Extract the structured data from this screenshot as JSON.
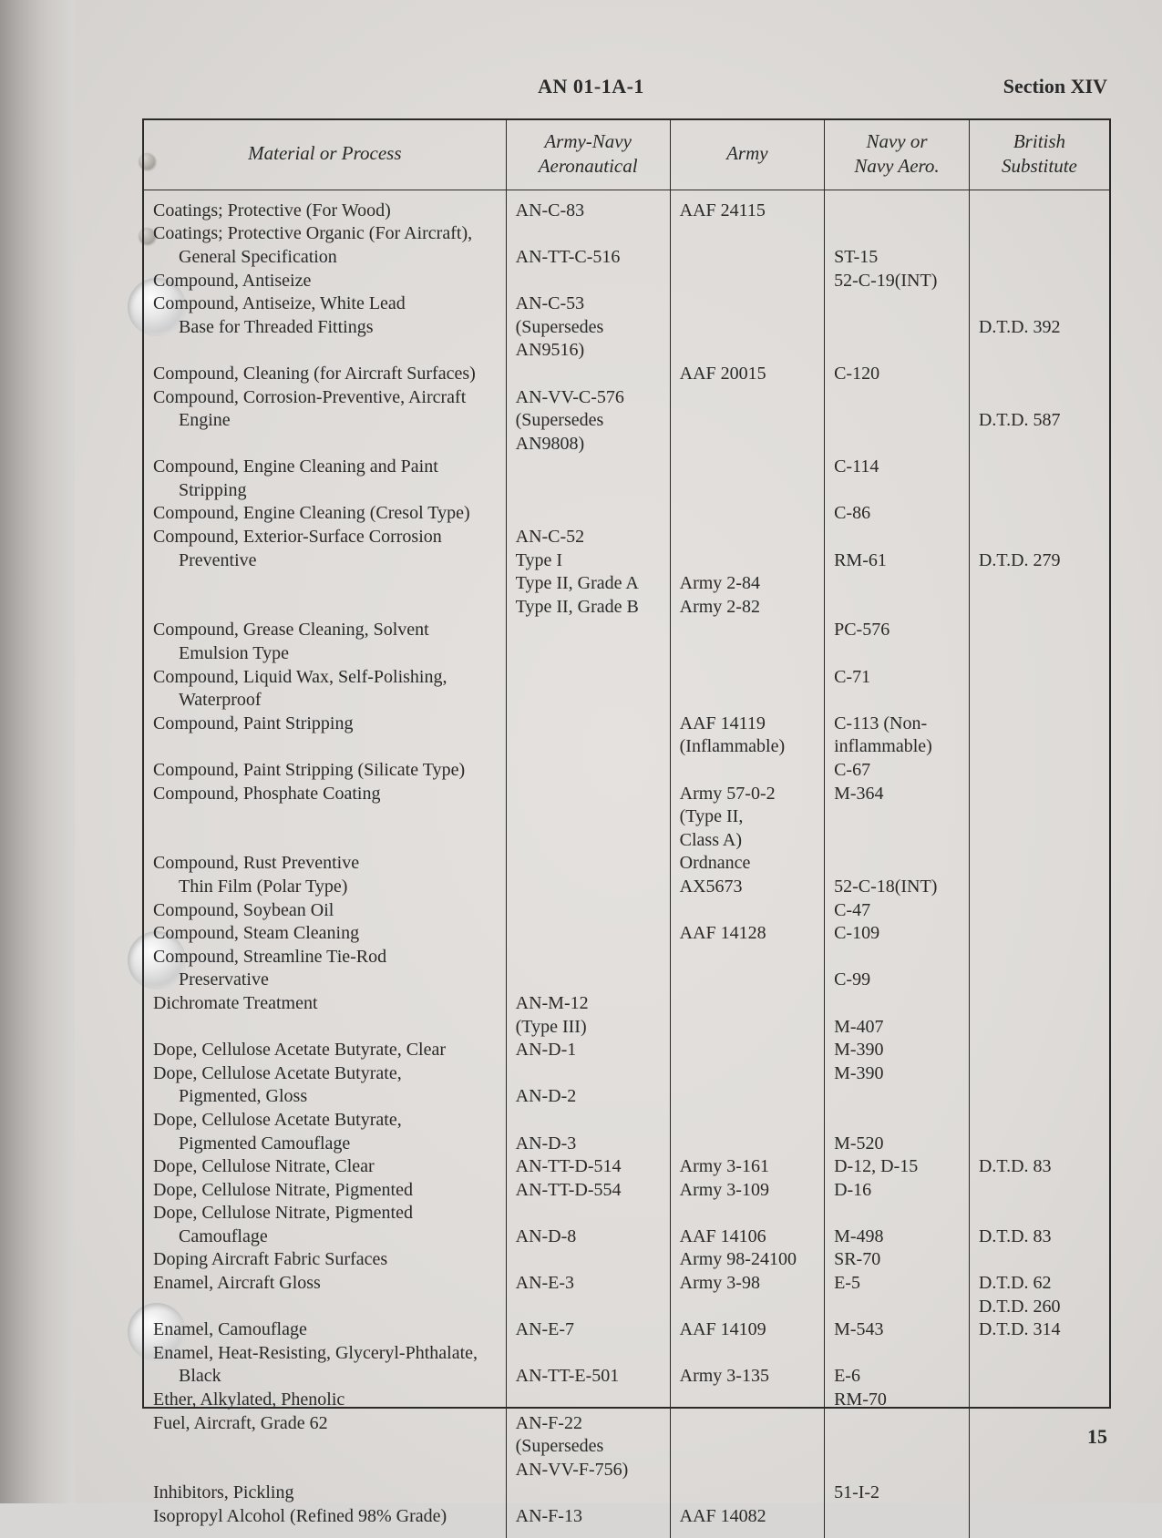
{
  "doc_id": "AN 01-1A-1",
  "section": "Section XIV",
  "page_number": "15",
  "columns": {
    "material": "Material or Process",
    "army_navy_aero": "Army-Navy Aeronautical",
    "army": "Army",
    "navy_or_aero": "Navy or Navy Aero.",
    "british": "British Substitute"
  },
  "rows": [
    {
      "material": "Coatings; Protective (For Wood)",
      "an": "AN-C-83",
      "army": "AAF 24115",
      "navy": "",
      "brit": ""
    },
    {
      "material": "Coatings; Protective Organic (For Aircraft),",
      "an": "",
      "army": "",
      "navy": "",
      "brit": ""
    },
    {
      "material": "General Specification",
      "indent": true,
      "an": "AN-TT-C-516",
      "army": "",
      "navy": "ST-15",
      "brit": ""
    },
    {
      "material": "Compound, Antiseize",
      "an": "",
      "army": "",
      "navy": "52-C-19(INT)",
      "brit": ""
    },
    {
      "material": "Compound, Antiseize, White Lead",
      "an": "AN-C-53",
      "army": "",
      "navy": "",
      "brit": ""
    },
    {
      "material": "Base for Threaded Fittings",
      "indent": true,
      "an": "(Supersedes",
      "army": "",
      "navy": "",
      "brit": "D.T.D. 392"
    },
    {
      "material": "",
      "an": "AN9516)",
      "army": "",
      "navy": "",
      "brit": ""
    },
    {
      "material": "Compound, Cleaning (for Aircraft Surfaces)",
      "an": "",
      "army": "AAF 20015",
      "navy": "C-120",
      "brit": ""
    },
    {
      "material": "Compound, Corrosion-Preventive, Aircraft",
      "an": "AN-VV-C-576",
      "army": "",
      "navy": "",
      "brit": ""
    },
    {
      "material": "Engine",
      "indent": true,
      "an": "(Supersedes",
      "army": "",
      "navy": "",
      "brit": "D.T.D. 587"
    },
    {
      "material": "",
      "an": "AN9808)",
      "army": "",
      "navy": "",
      "brit": ""
    },
    {
      "material": "Compound, Engine Cleaning and Paint",
      "an": "",
      "army": "",
      "navy": "C-114",
      "brit": ""
    },
    {
      "material": "Stripping",
      "indent": true,
      "an": "",
      "army": "",
      "navy": "",
      "brit": ""
    },
    {
      "material": "Compound, Engine Cleaning (Cresol Type)",
      "an": "",
      "army": "",
      "navy": "C-86",
      "brit": ""
    },
    {
      "material": "Compound, Exterior-Surface Corrosion",
      "an": "AN-C-52",
      "army": "",
      "navy": "",
      "brit": ""
    },
    {
      "material": "Preventive",
      "indent": true,
      "an": "Type I",
      "army": "",
      "navy": "RM-61",
      "brit": "D.T.D. 279"
    },
    {
      "material": "",
      "an": "Type II, Grade A",
      "army": "Army 2-84",
      "navy": "",
      "brit": ""
    },
    {
      "material": "",
      "an": "Type II, Grade B",
      "army": "Army 2-82",
      "navy": "",
      "brit": ""
    },
    {
      "material": "Compound, Grease Cleaning, Solvent",
      "an": "",
      "army": "",
      "navy": "PC-576",
      "brit": ""
    },
    {
      "material": "Emulsion Type",
      "indent": true,
      "an": "",
      "army": "",
      "navy": "",
      "brit": ""
    },
    {
      "material": "Compound, Liquid Wax, Self-Polishing,",
      "an": "",
      "army": "",
      "navy": "C-71",
      "brit": ""
    },
    {
      "material": "Waterproof",
      "indent": true,
      "an": "",
      "army": "",
      "navy": "",
      "brit": ""
    },
    {
      "material": "Compound, Paint Stripping",
      "an": "",
      "army": "AAF 14119",
      "navy": "C-113 (Non-",
      "brit": ""
    },
    {
      "material": "",
      "an": "",
      "army": "(Inflammable)",
      "navy": "inflammable)",
      "brit": ""
    },
    {
      "material": "Compound, Paint Stripping (Silicate Type)",
      "an": "",
      "army": "",
      "navy": "C-67",
      "brit": ""
    },
    {
      "material": "Compound, Phosphate Coating",
      "an": "",
      "army": "Army 57-0-2",
      "navy": "M-364",
      "brit": ""
    },
    {
      "material": "",
      "an": "",
      "army": "(Type II,",
      "navy": "",
      "brit": ""
    },
    {
      "material": "",
      "an": "",
      "army": "Class A)",
      "navy": "",
      "brit": ""
    },
    {
      "material": "Compound, Rust Preventive",
      "an": "",
      "army": "Ordnance",
      "navy": "",
      "brit": ""
    },
    {
      "material": "Thin Film (Polar Type)",
      "indent": true,
      "an": "",
      "army": "AX5673",
      "navy": "52-C-18(INT)",
      "brit": ""
    },
    {
      "material": "Compound, Soybean Oil",
      "an": "",
      "army": "",
      "navy": "C-47",
      "brit": ""
    },
    {
      "material": "Compound, Steam Cleaning",
      "an": "",
      "army": "AAF 14128",
      "navy": "C-109",
      "brit": ""
    },
    {
      "material": "Compound, Streamline Tie-Rod",
      "an": "",
      "army": "",
      "navy": "",
      "brit": ""
    },
    {
      "material": "Preservative",
      "indent": true,
      "an": "",
      "army": "",
      "navy": "C-99",
      "brit": ""
    },
    {
      "material": "Dichromate Treatment",
      "an": "AN-M-12",
      "army": "",
      "navy": "",
      "brit": ""
    },
    {
      "material": "",
      "an": "(Type III)",
      "army": "",
      "navy": "M-407",
      "brit": ""
    },
    {
      "material": "Dope, Cellulose Acetate Butyrate, Clear",
      "an": "AN-D-1",
      "army": "",
      "navy": "M-390",
      "brit": ""
    },
    {
      "material": "Dope, Cellulose Acetate Butyrate,",
      "an": "",
      "army": "",
      "navy": "M-390",
      "brit": ""
    },
    {
      "material": "Pigmented, Gloss",
      "indent": true,
      "an": "AN-D-2",
      "army": "",
      "navy": "",
      "brit": ""
    },
    {
      "material": "Dope, Cellulose Acetate Butyrate,",
      "an": "",
      "army": "",
      "navy": "",
      "brit": ""
    },
    {
      "material": "Pigmented Camouflage",
      "indent": true,
      "an": "AN-D-3",
      "army": "",
      "navy": "M-520",
      "brit": ""
    },
    {
      "material": "Dope, Cellulose Nitrate, Clear",
      "an": "AN-TT-D-514",
      "army": "Army 3-161",
      "navy": "D-12, D-15",
      "brit": "D.T.D. 83"
    },
    {
      "material": "Dope, Cellulose Nitrate, Pigmented",
      "an": "AN-TT-D-554",
      "army": "Army 3-109",
      "navy": "D-16",
      "brit": ""
    },
    {
      "material": "Dope, Cellulose Nitrate, Pigmented",
      "an": "",
      "army": "",
      "navy": "",
      "brit": ""
    },
    {
      "material": "Camouflage",
      "indent": true,
      "an": "AN-D-8",
      "army": "AAF 14106",
      "navy": "M-498",
      "brit": "D.T.D. 83"
    },
    {
      "material": "Doping Aircraft Fabric Surfaces",
      "an": "",
      "army": "Army 98-24100",
      "navy": "SR-70",
      "brit": ""
    },
    {
      "material": "Enamel, Aircraft Gloss",
      "an": "AN-E-3",
      "army": "Army 3-98",
      "navy": "E-5",
      "brit": "D.T.D. 62"
    },
    {
      "material": "",
      "an": "",
      "army": "",
      "navy": "",
      "brit": "D.T.D. 260"
    },
    {
      "material": "Enamel, Camouflage",
      "an": "AN-E-7",
      "army": "AAF 14109",
      "navy": "M-543",
      "brit": "D.T.D. 314"
    },
    {
      "material": "Enamel, Heat-Resisting, Glyceryl-Phthalate,",
      "an": "",
      "army": "",
      "navy": "",
      "brit": ""
    },
    {
      "material": "Black",
      "indent": true,
      "an": "AN-TT-E-501",
      "army": "Army 3-135",
      "navy": "E-6",
      "brit": ""
    },
    {
      "material": "Ether, Alkylated, Phenolic",
      "an": "",
      "army": "",
      "navy": "RM-70",
      "brit": ""
    },
    {
      "material": "Fuel, Aircraft, Grade 62",
      "an": "AN-F-22",
      "army": "",
      "navy": "",
      "brit": ""
    },
    {
      "material": "",
      "an": "(Supersedes",
      "army": "",
      "navy": "",
      "brit": ""
    },
    {
      "material": "",
      "an": "AN-VV-F-756)",
      "army": "",
      "navy": "",
      "brit": ""
    },
    {
      "material": "Inhibitors, Pickling",
      "an": "",
      "army": "",
      "navy": "51-I-2",
      "brit": ""
    },
    {
      "material": "Isopropyl Alcohol (Refined 98% Grade)",
      "an": "AN-F-13",
      "army": "AAF 14082",
      "navy": "",
      "brit": ""
    }
  ]
}
